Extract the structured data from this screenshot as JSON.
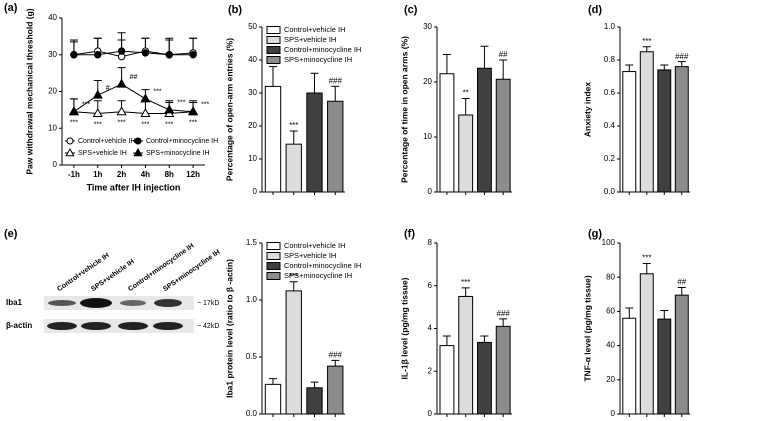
{
  "chart_data": [
    {
      "type": "line",
      "panel": "(a)",
      "ylabel": "Paw withdrawal mechanical threshold (g)",
      "xlabel": "Time after IH injection",
      "categories": [
        "-1h",
        "1h",
        "2h",
        "4h",
        "8h",
        "12h"
      ],
      "ylim": [
        0,
        40
      ],
      "yticks": [
        0,
        10,
        20,
        30,
        40
      ],
      "series": [
        {
          "name": "Control+vehicle IH",
          "color": "#ffffff",
          "marker": "circle",
          "values": [
            30,
            31,
            29.5,
            31,
            30,
            30.5
          ],
          "errors": [
            4,
            3.5,
            4.5,
            3.5,
            4,
            4
          ]
        },
        {
          "name": "SPS+vehicle IH",
          "color": "#ffffff",
          "marker": "triangle",
          "values": [
            14.5,
            14,
            14.5,
            14,
            14,
            14.5
          ],
          "errors": [
            3.5,
            3.5,
            3,
            3.5,
            3,
            3
          ],
          "annotations": [
            "***",
            "***",
            "***",
            "***",
            "***",
            "***"
          ]
        },
        {
          "name": "Control+minocycline IH",
          "color": "#000000",
          "marker": "circle",
          "values": [
            30,
            30,
            31,
            30.5,
            30,
            30
          ],
          "errors": [
            3.5,
            4.5,
            5,
            4,
            4.5,
            4.5
          ]
        },
        {
          "name": "SPS+minocycline IH",
          "color": "#000000",
          "marker": "triangle",
          "values": [
            14.5,
            19,
            22,
            18,
            15,
            14.5
          ],
          "errors": [
            3.5,
            4,
            4.5,
            2.5,
            2.5,
            2.5
          ],
          "annotations": [
            "***",
            "#",
            "##",
            "***",
            "***",
            "***"
          ]
        }
      ]
    },
    {
      "type": "bar",
      "panel": "(b)",
      "ylabel": "Percentage of open-arm entries (%)",
      "legend": true,
      "categories": [
        "Control+vehicle IH",
        "SPS+vehicle IH",
        "Control+minocycline IH",
        "SPS+minocycline IH"
      ],
      "colors": [
        "#ffffff",
        "#dcdcdc",
        "#404040",
        "#8c8c8c"
      ],
      "values": [
        32,
        14.5,
        30,
        27.5
      ],
      "errors": [
        6,
        4,
        6,
        4.5
      ],
      "annotations": [
        null,
        "***",
        null,
        "###"
      ],
      "ylim": [
        0,
        50
      ],
      "yticks": [
        0,
        10,
        20,
        30,
        40,
        50
      ]
    },
    {
      "type": "bar",
      "panel": "(c)",
      "ylabel": "Percentage of time in open arms (%)",
      "legend": false,
      "categories": [
        "Control+vehicle IH",
        "SPS+vehicle IH",
        "Control+minocycline IH",
        "SPS+minocycline IH"
      ],
      "colors": [
        "#ffffff",
        "#dcdcdc",
        "#404040",
        "#8c8c8c"
      ],
      "values": [
        21.5,
        14,
        22.5,
        20.5
      ],
      "errors": [
        3.5,
        3,
        4,
        3.5
      ],
      "annotations": [
        null,
        "**",
        null,
        "##"
      ],
      "ylim": [
        0,
        30
      ],
      "yticks": [
        0,
        10,
        20,
        30
      ]
    },
    {
      "type": "bar",
      "panel": "(d)",
      "ylabel": "Anxiety index",
      "legend": false,
      "categories": [
        "Control+vehicle IH",
        "SPS+vehicle IH",
        "Control+minocycline IH",
        "SPS+minocycline IH"
      ],
      "colors": [
        "#ffffff",
        "#dcdcdc",
        "#404040",
        "#8c8c8c"
      ],
      "values": [
        0.73,
        0.85,
        0.74,
        0.76
      ],
      "errors": [
        0.04,
        0.03,
        0.03,
        0.03
      ],
      "annotations": [
        null,
        "***",
        null,
        "###"
      ],
      "ylim": [
        0,
        1
      ],
      "yticks": [
        {
          "value": 0,
          "label": "0.0"
        },
        0.2,
        0.4,
        0.6,
        0.8,
        {
          "value": 1,
          "label": "1.0"
        }
      ]
    },
    {
      "type": "bar",
      "ylabel": "Iba1 protein level (ratio to β -actin)",
      "legend": true,
      "categories": [
        "Control+vehicle IH",
        "SPS+vehicle IH",
        "Control+minocycline IH",
        "SPS+minocycline IH"
      ],
      "colors": [
        "#ffffff",
        "#dcdcdc",
        "#404040",
        "#8c8c8c"
      ],
      "values": [
        0.26,
        1.08,
        0.23,
        0.42
      ],
      "errors": [
        0.05,
        0.08,
        0.05,
        0.05
      ],
      "annotations": [
        null,
        "***",
        null,
        "###"
      ],
      "ylim": [
        0,
        1.5
      ],
      "yticks": [
        {
          "value": 0,
          "label": "0.0"
        },
        0.5,
        {
          "value": 1,
          "label": "1.0"
        },
        1.5
      ]
    },
    {
      "type": "bar",
      "panel": "(f)",
      "ylabel": "IL-1β  level (pg/mg tissue)",
      "legend": false,
      "categories": [
        "Control+vehicle IH",
        "SPS+vehicle IH",
        "Control+minocycline IH",
        "SPS+minocycline IH"
      ],
      "colors": [
        "#ffffff",
        "#dcdcdc",
        "#404040",
        "#8c8c8c"
      ],
      "values": [
        3.2,
        5.5,
        3.35,
        4.1
      ],
      "errors": [
        0.45,
        0.4,
        0.3,
        0.35
      ],
      "annotations": [
        null,
        "***",
        null,
        "###"
      ],
      "ylim": [
        0,
        8
      ],
      "yticks": [
        0,
        2,
        4,
        6,
        8
      ]
    },
    {
      "type": "bar",
      "panel": "(g)",
      "ylabel": "TNF-α  level (pg/mg tissue)",
      "legend": false,
      "categories": [
        "Control+vehicle IH",
        "SPS+vehicle IH",
        "Control+minocycline IH",
        "SPS+minocycline IH"
      ],
      "colors": [
        "#ffffff",
        "#dcdcdc",
        "#404040",
        "#8c8c8c"
      ],
      "values": [
        56,
        82,
        55.5,
        69.5
      ],
      "errors": [
        6,
        6,
        5,
        4.5
      ],
      "annotations": [
        null,
        "***",
        null,
        "##"
      ],
      "ylim": [
        0,
        100
      ],
      "yticks": [
        0,
        20,
        40,
        60,
        80,
        100
      ]
    }
  ],
  "blot": {
    "panel": "(e)",
    "lanes": [
      "Control+vehicle IH",
      "SPS+vehicle IH",
      "Control+minocycline IH",
      "SPS+minocycline IH"
    ],
    "rows": [
      "Iba1",
      "β-actin"
    ],
    "sizes": [
      "~ 17kD",
      "~ 42kD"
    ]
  }
}
